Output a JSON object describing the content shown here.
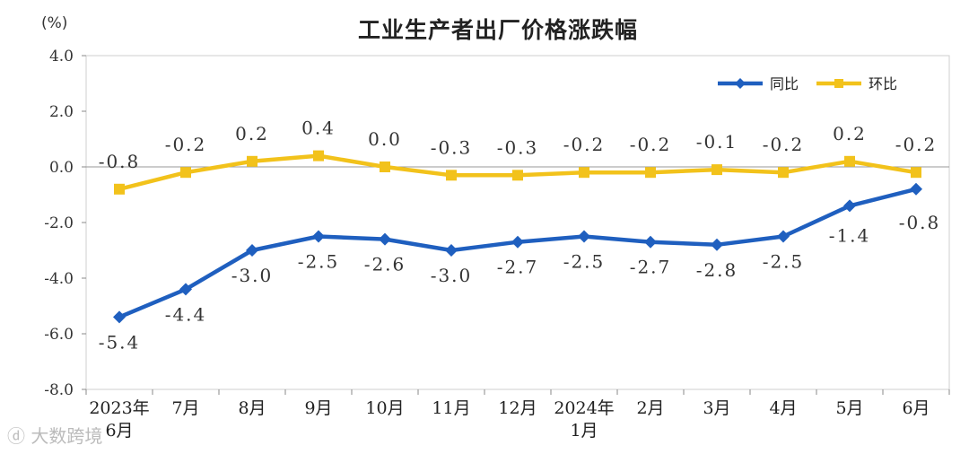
{
  "chart_data": {
    "type": "line",
    "title": "工业生产者出厂价格涨跌幅",
    "unit_label": "(%)",
    "categories": [
      [
        "2023年",
        "6月"
      ],
      [
        "7月"
      ],
      [
        "8月"
      ],
      [
        "9月"
      ],
      [
        "10月"
      ],
      [
        "11月"
      ],
      [
        "12月"
      ],
      [
        "2024年",
        "1月"
      ],
      [
        "2月"
      ],
      [
        "3月"
      ],
      [
        "4月"
      ],
      [
        "5月"
      ],
      [
        "6月"
      ]
    ],
    "ylim": [
      -8.0,
      4.0
    ],
    "yticks": [
      "4.0",
      "2.0",
      "0.0",
      "-2.0",
      "-4.0",
      "-6.0",
      "-8.0"
    ],
    "ytick_values": [
      4,
      2,
      0,
      -2,
      -4,
      -6,
      -8
    ],
    "legend_position": "top-right",
    "series": [
      {
        "name": "同比",
        "color": "#1f5fbf",
        "marker": "diamond",
        "values": [
          -5.4,
          -4.4,
          -3.0,
          -2.5,
          -2.6,
          -3.0,
          -2.7,
          -2.5,
          -2.7,
          -2.8,
          -2.5,
          -1.4,
          -0.8
        ],
        "labels": [
          "-5.4",
          "-4.4",
          "-3.0",
          "-2.5",
          "-2.6",
          "-3.0",
          "-2.7",
          "-2.5",
          "-2.7",
          "-2.8",
          "-2.5",
          "-1.4",
          "-0.8"
        ]
      },
      {
        "name": "环比",
        "color": "#f2c21b",
        "marker": "square",
        "values": [
          -0.8,
          -0.2,
          0.2,
          0.4,
          0.0,
          -0.3,
          -0.3,
          -0.2,
          -0.2,
          -0.1,
          -0.2,
          0.2,
          -0.2
        ],
        "labels": [
          "-0.8",
          "-0.2",
          "0.2",
          "0.4",
          "0.0",
          "-0.3",
          "-0.3",
          "-0.2",
          "-0.2",
          "-0.1",
          "-0.2",
          "0.2",
          "-0.2"
        ]
      }
    ]
  },
  "watermark": "大数跨境"
}
